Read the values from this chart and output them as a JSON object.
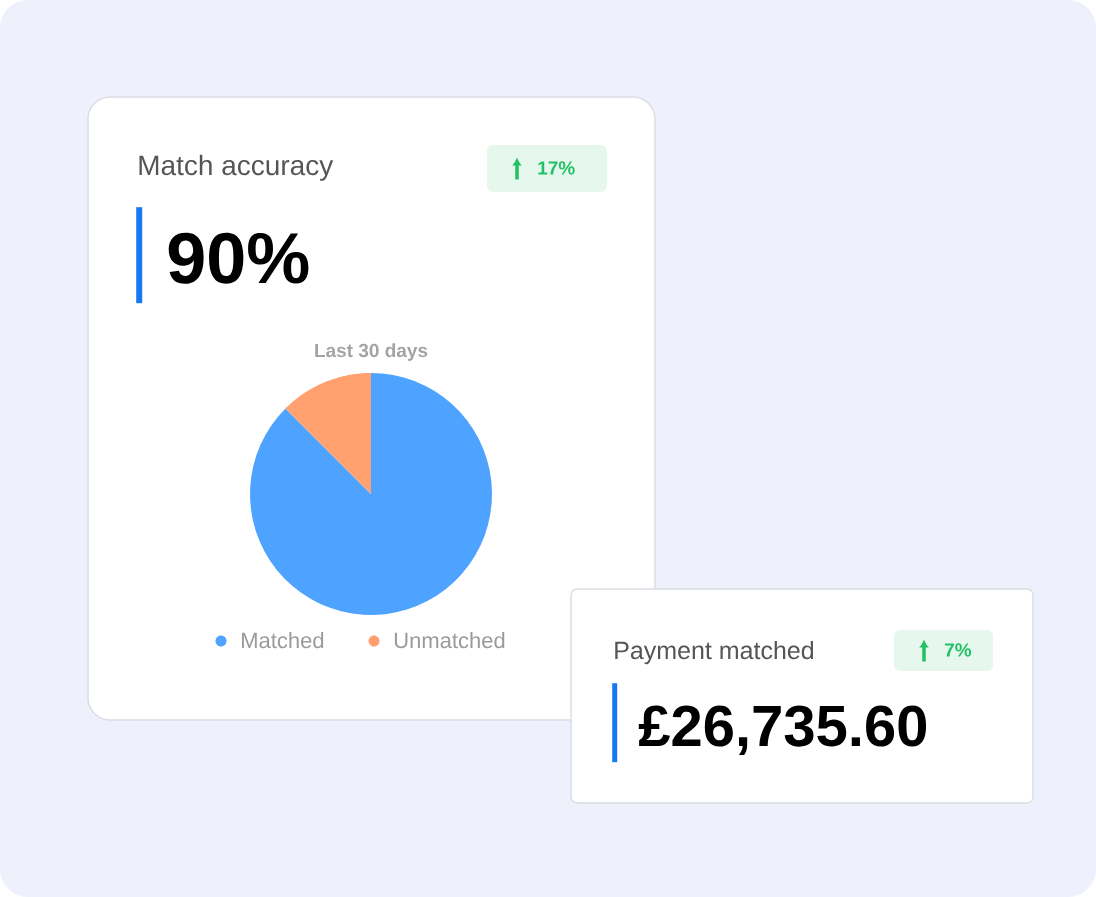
{
  "chart_data": [
    {
      "type": "other",
      "title": "Match accuracy",
      "annotations": [
        "17%",
        "90%"
      ]
    },
    {
      "type": "pie",
      "title": "Last 30 days",
      "categories": [
        "Matched",
        "Unmatched"
      ],
      "values": [
        87.5,
        12.5
      ],
      "colors": [
        "#4da3ff",
        "#ffa06e"
      ],
      "legend": "bottom"
    },
    {
      "type": "other",
      "title": "Payment matched",
      "annotations": [
        "7%",
        "£26,735.60"
      ]
    }
  ]
}
